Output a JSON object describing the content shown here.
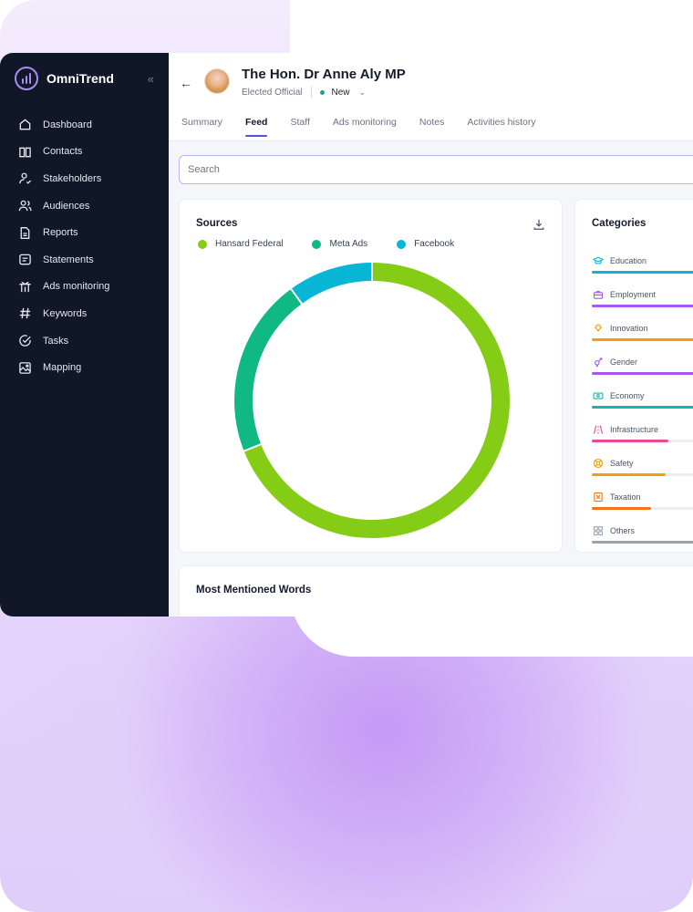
{
  "brand": {
    "name": "OmniTrend",
    "collapse_icon": "double-chevron-left-icon"
  },
  "sidebar": {
    "items": [
      {
        "label": "Dashboard",
        "icon": "home-icon"
      },
      {
        "label": "Contacts",
        "icon": "book-icon"
      },
      {
        "label": "Stakeholders",
        "icon": "user-check-icon"
      },
      {
        "label": "Audiences",
        "icon": "users-icon"
      },
      {
        "label": "Reports",
        "icon": "file-icon"
      },
      {
        "label": "Statements",
        "icon": "message-icon"
      },
      {
        "label": "Ads monitoring",
        "icon": "antenna-icon"
      },
      {
        "label": "Keywords",
        "icon": "hash-icon"
      },
      {
        "label": "Tasks",
        "icon": "check-circle-icon"
      },
      {
        "label": "Mapping",
        "icon": "map-icon"
      }
    ]
  },
  "header": {
    "name": "The Hon. Dr Anne Aly MP",
    "role": "Elected Official",
    "status": "New",
    "tabs": [
      {
        "label": "Summary"
      },
      {
        "label": "Feed"
      },
      {
        "label": "Staff"
      },
      {
        "label": "Ads monitoring"
      },
      {
        "label": "Notes"
      },
      {
        "label": "Activities history"
      }
    ],
    "active_tab": "Feed"
  },
  "search": {
    "placeholder": "Search"
  },
  "sources": {
    "title": "Sources",
    "legend": [
      {
        "label": "Hansard Federal",
        "color": "#84cc16"
      },
      {
        "label": "Meta Ads",
        "color": "#10b981"
      },
      {
        "label": "Facebook",
        "color": "#06b6d4"
      }
    ]
  },
  "chart_data": {
    "type": "pie",
    "categories": [
      "Hansard Federal",
      "Meta Ads",
      "Facebook"
    ],
    "values": [
      0.69,
      0.21,
      0.1
    ],
    "colors": [
      "#84cc16",
      "#10b981",
      "#06b6d4"
    ],
    "title": "Sources"
  },
  "categories": {
    "title": "Categories",
    "items": [
      {
        "label": "Education",
        "color": "#06b6d4",
        "fill": 1.0
      },
      {
        "label": "Employment",
        "color": "#a855f7",
        "fill": 1.0
      },
      {
        "label": "Innovation",
        "color": "#f59e0b",
        "fill": 1.0
      },
      {
        "label": "Gender",
        "color": "#a855f7",
        "fill": 1.0
      },
      {
        "label": "Economy",
        "color": "#14b8a6",
        "fill": 1.0
      },
      {
        "label": "Infrastructure",
        "color": "#ec4899",
        "fill": 0.59
      },
      {
        "label": "Safety",
        "color": "#f59e0b",
        "fill": 0.57
      },
      {
        "label": "Taxation",
        "color": "#f97316",
        "fill": 0.46
      },
      {
        "label": "Others",
        "color": "#9ca3af",
        "fill": 1.0
      }
    ]
  },
  "words": {
    "title": "Most Mentioned Words"
  }
}
